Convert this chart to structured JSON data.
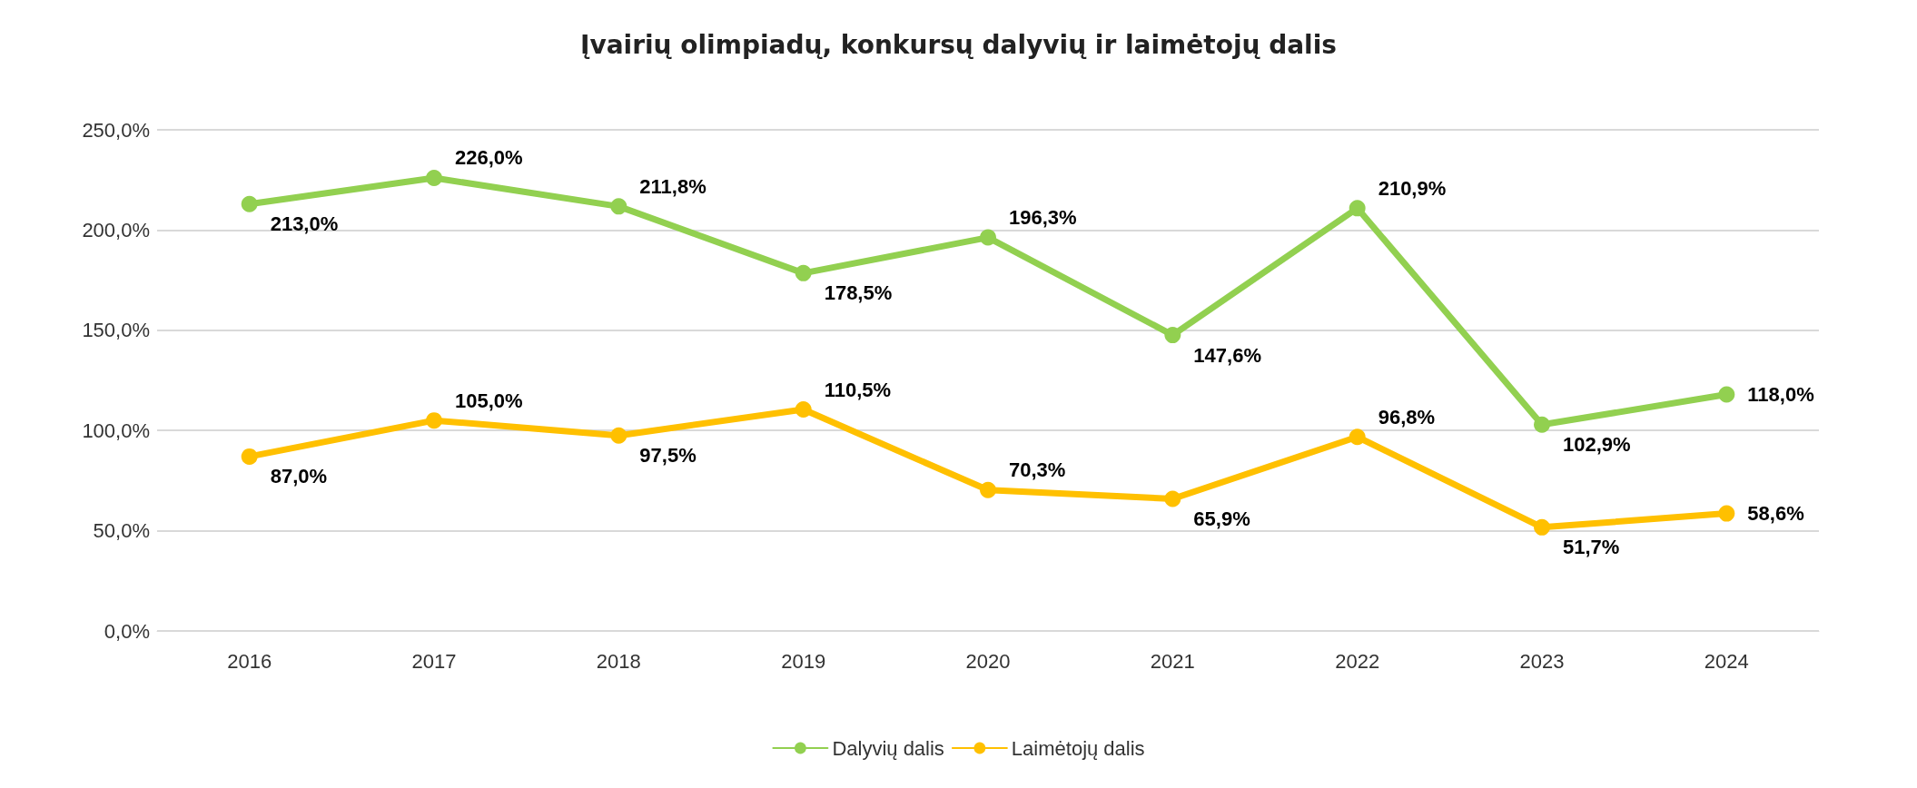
{
  "chart_data": {
    "type": "line",
    "title": "Įvairių olimpiadų, konkursų dalyvių ir laimėtojų dalis",
    "categories": [
      "2016",
      "2017",
      "2018",
      "2019",
      "2020",
      "2021",
      "2022",
      "2023",
      "2024"
    ],
    "series": [
      {
        "name": "Dalyvių dalis",
        "color": "#92d050",
        "values": [
          213.0,
          226.0,
          211.8,
          178.5,
          196.3,
          147.6,
          210.9,
          102.9,
          118.0
        ],
        "value_labels": [
          "213,0%",
          "226,0%",
          "211,8%",
          "178,5%",
          "196,3%",
          "147,6%",
          "210,9%",
          "102,9%",
          "118,0%"
        ]
      },
      {
        "name": "Laimėtojų dalis",
        "color": "#ffc000",
        "values": [
          87.0,
          105.0,
          97.5,
          110.5,
          70.3,
          65.9,
          96.8,
          51.7,
          58.6
        ],
        "value_labels": [
          "87,0%",
          "105,0%",
          "97,5%",
          "110,5%",
          "70,3%",
          "65,9%",
          "96,8%",
          "51,7%",
          "58,6%"
        ]
      }
    ],
    "ylim": [
      0,
      250
    ],
    "yticks": [
      {
        "value": 0,
        "label": "0,0%"
      },
      {
        "value": 50,
        "label": "50,0%"
      },
      {
        "value": 100,
        "label": "100,0%"
      },
      {
        "value": 150,
        "label": "150,0%"
      },
      {
        "value": 200,
        "label": "200,0%"
      },
      {
        "value": 250,
        "label": "250,0%"
      }
    ],
    "grid": "y",
    "legend": "bottom",
    "marker": "circle",
    "line_style": "solid"
  }
}
